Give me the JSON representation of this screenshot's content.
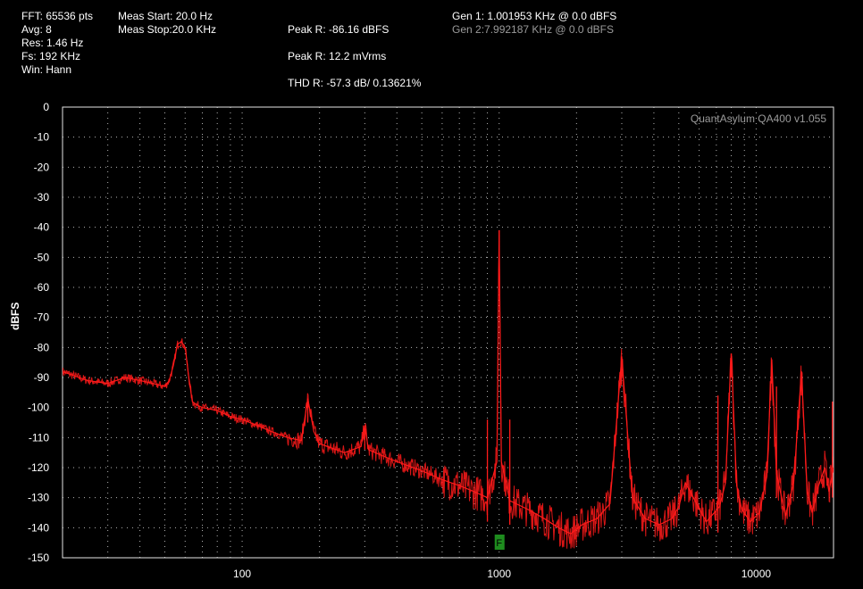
{
  "header": {
    "fft": "FFT: 65536 pts",
    "avg": "Avg: 8",
    "res": "Res: 1.46 Hz",
    "fs": "Fs: 192 KHz",
    "win": "Win: Hann",
    "meas_start": "Meas Start: 20.0 Hz",
    "meas_stop": "Meas Stop:20.0 KHz",
    "peak_dbfs": "Peak R: -86.16 dBFS",
    "peak_vrms": "Peak R: 12.2 mVrms",
    "thd": "THD R: -57.3 dB/ 0.13621%",
    "gen1": "Gen 1: 1.001953 KHz @ 0.0  dBFS",
    "gen2": "Gen 2:7.992187 KHz @ 0.0  dBFS"
  },
  "colors": {
    "background": "#000000",
    "trace": "#ff1a1a",
    "grid": "#b4b4b4",
    "gen2_text": "#9a9a9a",
    "marker": "#1e8c1e"
  },
  "chart_data": {
    "type": "line",
    "title": "",
    "watermark": "QuantAsylum QA400 v1.055",
    "xlabel": "",
    "ylabel": "dBFS",
    "x_scale": "log",
    "xlim": [
      20,
      20000
    ],
    "ylim": [
      -150,
      0
    ],
    "yticks": [
      0,
      -10,
      -20,
      -30,
      -40,
      -50,
      -60,
      -70,
      -80,
      -90,
      -100,
      -110,
      -120,
      -130,
      -140,
      -150
    ],
    "xtick_labels": [
      {
        "value": 100,
        "label": "100"
      },
      {
        "value": 1000,
        "label": "1000"
      },
      {
        "value": 10000,
        "label": "10000"
      }
    ],
    "grid": true,
    "marker": {
      "label": "F",
      "x": 1000
    },
    "series": [
      {
        "x": [
          20,
          25,
          30,
          35,
          40,
          45,
          50,
          52,
          54,
          56,
          58,
          60,
          62,
          64,
          66,
          70,
          80,
          90,
          100,
          115,
          130,
          150,
          170,
          180,
          190,
          200,
          250,
          290,
          300,
          310,
          350,
          400,
          500,
          600,
          700,
          800,
          900,
          980,
          1000,
          1020,
          1100,
          1300,
          1500,
          1700,
          1900,
          2100,
          2400,
          2700,
          3000,
          3300,
          3700,
          4200,
          4700,
          5000,
          5300,
          5700,
          6400,
          7200,
          7600,
          8000,
          8400,
          8800,
          9500,
          10300,
          11000,
          11500,
          12000,
          13000,
          14000,
          15000,
          15800,
          16500,
          17500,
          18500,
          19200,
          20000
        ],
        "y": [
          -88,
          -91,
          -92,
          -90,
          -91,
          -92,
          -93,
          -91,
          -86,
          -79,
          -78,
          -80,
          -90,
          -98,
          -99,
          -100,
          -101,
          -103,
          -104,
          -106,
          -108,
          -110,
          -111,
          -97,
          -108,
          -112,
          -115,
          -113,
          -106,
          -114,
          -116,
          -118,
          -121,
          -124,
          -126,
          -128,
          -130,
          -118,
          -41,
          -118,
          -131,
          -134,
          -137,
          -140,
          -142,
          -139,
          -137,
          -132,
          -83,
          -130,
          -137,
          -139,
          -137,
          -133,
          -125,
          -130,
          -138,
          -133,
          -125,
          -82,
          -126,
          -134,
          -138,
          -135,
          -123,
          -84,
          -122,
          -136,
          -125,
          -88,
          -128,
          -135,
          -126,
          -120,
          -128,
          -120
        ]
      }
    ],
    "spurs": [
      {
        "x": 180,
        "y": -97
      },
      {
        "x": 300,
        "y": -106
      },
      {
        "x": 1000,
        "y": -41
      },
      {
        "x": 2990,
        "y": -83
      },
      {
        "x": 8000,
        "y": -82
      },
      {
        "x": 11500,
        "y": -84
      },
      {
        "x": 15000,
        "y": -88
      },
      {
        "x": 12000,
        "y": -93
      },
      {
        "x": 7100,
        "y": -96
      },
      {
        "x": 900,
        "y": -104
      },
      {
        "x": 1100,
        "y": -104
      },
      {
        "x": 19800,
        "y": -98
      }
    ]
  }
}
